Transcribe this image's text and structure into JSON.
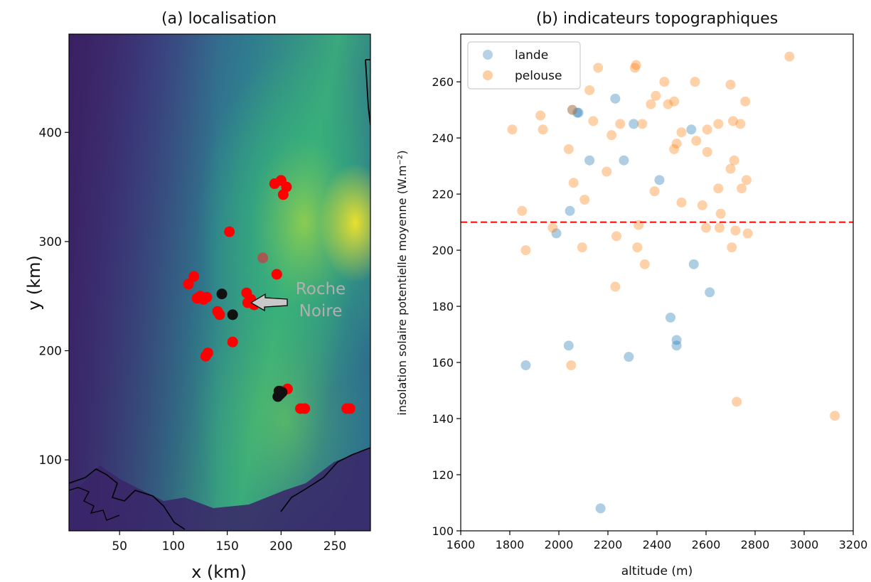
{
  "colors": {
    "terrain_low": "#3b1f5e",
    "terrain_mid": "#2a8b8c",
    "terrain_high": "#fde725",
    "site_red": "#ff0000",
    "site_black": "#111111",
    "lande": "#1f77b4",
    "pelouse": "#ff7f0e",
    "threshold": "#ff0000"
  },
  "chart_data": [
    {
      "type": "scatter",
      "title": "(a) localisation",
      "xlabel": "x (km)",
      "ylabel": "y (km)",
      "xlim": [
        3,
        283
      ],
      "ylim": [
        35,
        490
      ],
      "xticks": [
        50,
        100,
        150,
        200,
        250
      ],
      "yticks": [
        100,
        200,
        300,
        400
      ],
      "background": "elevation map",
      "annotation": {
        "text": [
          "Roche",
          "Noire"
        ],
        "arrow_to": [
          168,
          244
        ],
        "text_at": [
          230,
          240
        ]
      },
      "series": [
        {
          "marker": "red",
          "points": [
            [
              194,
              353
            ],
            [
              200,
              356
            ],
            [
              205,
              350
            ],
            [
              202,
              343
            ],
            [
              152,
              309
            ],
            [
              119,
              268
            ],
            [
              114,
              261
            ],
            [
              125,
              250
            ],
            [
              128,
              247
            ],
            [
              131,
              249
            ],
            [
              122,
              248
            ],
            [
              168,
              253
            ],
            [
              172,
              247
            ],
            [
              175,
              242
            ],
            [
              169,
              244
            ],
            [
              196,
              270
            ],
            [
              141,
              236
            ],
            [
              143,
              233
            ],
            [
              155,
              208
            ],
            [
              132,
              198
            ],
            [
              130,
              195
            ],
            [
              206,
              165
            ],
            [
              200,
              163
            ],
            [
              218,
              147
            ],
            [
              222,
              147
            ],
            [
              261,
              147
            ],
            [
              264,
              147
            ]
          ]
        },
        {
          "marker": "red-faded",
          "points": [
            [
              183,
              285
            ]
          ]
        },
        {
          "marker": "black",
          "points": [
            [
              145,
              252
            ],
            [
              155,
              233
            ],
            [
              197,
              158
            ],
            [
              199,
              160
            ],
            [
              201,
              162
            ],
            [
              198,
              163
            ]
          ]
        }
      ]
    },
    {
      "type": "scatter",
      "title": "(b) indicateurs topographiques",
      "xlabel": "altitude (m)",
      "ylabel": "insolation solaire potentielle moyenne (W.m⁻²)",
      "xlim": [
        1600,
        3200
      ],
      "ylim": [
        100,
        277
      ],
      "xticks": [
        1600,
        1800,
        2000,
        2200,
        2400,
        2600,
        2800,
        3000,
        3200
      ],
      "yticks": [
        100,
        120,
        140,
        160,
        180,
        200,
        220,
        240,
        260
      ],
      "hline": 210,
      "legend": "top-left",
      "series": [
        {
          "name": "lande",
          "points": [
            [
              2055,
              250
            ],
            [
              2075,
              249
            ],
            [
              2080,
              249
            ],
            [
              2230,
              254
            ],
            [
              2305,
              245
            ],
            [
              2540,
              243
            ],
            [
              2125,
              232
            ],
            [
              2265,
              232
            ],
            [
              2410,
              225
            ],
            [
              2045,
              214
            ],
            [
              1990,
              206
            ],
            [
              2550,
              195
            ],
            [
              2615,
              185
            ],
            [
              2455,
              176
            ],
            [
              2480,
              168
            ],
            [
              2040,
              166
            ],
            [
              2480,
              166
            ],
            [
              2285,
              162
            ],
            [
              1865,
              159
            ],
            [
              2170,
              108
            ]
          ]
        },
        {
          "name": "pelouse",
          "points": [
            [
              2940,
              269
            ],
            [
              2315,
              266
            ],
            [
              2310,
              265
            ],
            [
              2160,
              265
            ],
            [
              2125,
              257
            ],
            [
              2430,
              260
            ],
            [
              2555,
              260
            ],
            [
              2700,
              259
            ],
            [
              2395,
              255
            ],
            [
              2445,
              252
            ],
            [
              2470,
              253
            ],
            [
              2055,
              250
            ],
            [
              2760,
              253
            ],
            [
              2375,
              252
            ],
            [
              1925,
              248
            ],
            [
              2140,
              246
            ],
            [
              2250,
              245
            ],
            [
              2340,
              245
            ],
            [
              2650,
              245
            ],
            [
              2710,
              246
            ],
            [
              2740,
              245
            ],
            [
              1810,
              243
            ],
            [
              1935,
              243
            ],
            [
              2500,
              242
            ],
            [
              2605,
              243
            ],
            [
              2215,
              241
            ],
            [
              2480,
              238
            ],
            [
              2470,
              236
            ],
            [
              2560,
              239
            ],
            [
              2040,
              236
            ],
            [
              2605,
              235
            ],
            [
              2715,
              232
            ],
            [
              2700,
              229
            ],
            [
              2195,
              228
            ],
            [
              2060,
              224
            ],
            [
              2765,
              225
            ],
            [
              2390,
              221
            ],
            [
              2650,
              222
            ],
            [
              2745,
              222
            ],
            [
              2105,
              218
            ],
            [
              2500,
              217
            ],
            [
              2585,
              216
            ],
            [
              1850,
              214
            ],
            [
              2660,
              213
            ],
            [
              2770,
              206
            ],
            [
              2325,
              209
            ],
            [
              2600,
              208
            ],
            [
              2655,
              208
            ],
            [
              2720,
              207
            ],
            [
              1975,
              208
            ],
            [
              2235,
              205
            ],
            [
              2095,
              201
            ],
            [
              2320,
              201
            ],
            [
              2705,
              201
            ],
            [
              1865,
              200
            ],
            [
              2350,
              195
            ],
            [
              2230,
              187
            ],
            [
              2050,
              159
            ],
            [
              2725,
              146
            ],
            [
              3125,
              141
            ]
          ]
        }
      ]
    }
  ]
}
